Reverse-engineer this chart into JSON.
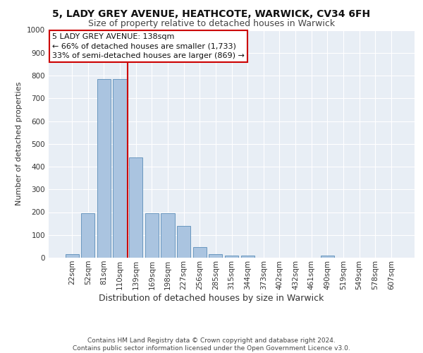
{
  "title1": "5, LADY GREY AVENUE, HEATHCOTE, WARWICK, CV34 6FH",
  "title2": "Size of property relative to detached houses in Warwick",
  "xlabel": "Distribution of detached houses by size in Warwick",
  "ylabel": "Number of detached properties",
  "categories": [
    "22sqm",
    "52sqm",
    "81sqm",
    "110sqm",
    "139sqm",
    "169sqm",
    "198sqm",
    "227sqm",
    "256sqm",
    "285sqm",
    "315sqm",
    "344sqm",
    "373sqm",
    "402sqm",
    "432sqm",
    "461sqm",
    "490sqm",
    "519sqm",
    "549sqm",
    "578sqm",
    "607sqm"
  ],
  "values": [
    15,
    195,
    785,
    785,
    440,
    195,
    195,
    140,
    45,
    15,
    10,
    10,
    0,
    0,
    0,
    0,
    10,
    0,
    0,
    0,
    0
  ],
  "bar_color": "#aac4e0",
  "bar_edge_color": "#5b8db8",
  "highlight_color": "#cc0000",
  "annotation_text": "5 LADY GREY AVENUE: 138sqm\n← 66% of detached houses are smaller (1,733)\n33% of semi-detached houses are larger (869) →",
  "annotation_box_color": "#ffffff",
  "annotation_box_edge_color": "#cc0000",
  "ylim": [
    0,
    1000
  ],
  "yticks": [
    0,
    100,
    200,
    300,
    400,
    500,
    600,
    700,
    800,
    900,
    1000
  ],
  "background_color": "#e8eef5",
  "grid_color": "#ffffff",
  "footer_text": "Contains HM Land Registry data © Crown copyright and database right 2024.\nContains public sector information licensed under the Open Government Licence v3.0.",
  "title1_fontsize": 10,
  "title2_fontsize": 9,
  "xlabel_fontsize": 9,
  "ylabel_fontsize": 8,
  "tick_fontsize": 7.5,
  "annotation_fontsize": 8,
  "footer_fontsize": 6.5
}
